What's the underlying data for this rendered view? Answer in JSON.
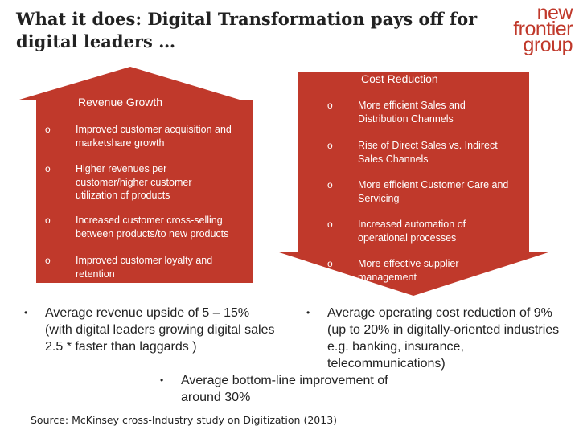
{
  "title": "What it does: Digital Transformation pays off for digital leaders …",
  "logo": {
    "line1": "new",
    "line2": "frontier",
    "line3": "group"
  },
  "colors": {
    "arrow_fill": "#c0392b",
    "logo": "#c0392b"
  },
  "revenue_panel": {
    "heading": "Revenue Growth",
    "bullet_glyph": "o",
    "items": [
      "Improved customer acquisition and marketshare growth",
      "Higher revenues per customer/higher customer utilization of products",
      "Increased customer cross-selling between products/to new products",
      "Improved customer loyalty and retention"
    ]
  },
  "cost_panel": {
    "heading": "Cost Reduction",
    "bullet_glyph": "o",
    "items": [
      "More efficient Sales and Distribution Channels",
      "Rise of Direct Sales vs. Indirect Sales Channels",
      "More efficient Customer Care and Servicing",
      "Increased automation of operational processes",
      "More effective supplier management"
    ]
  },
  "summary": {
    "bullet_glyph": "•",
    "revenue": "Average revenue upside of 5 – 15% (with digital leaders growing digital sales 2.5 * faster than laggards )",
    "cost": "Average operating cost reduction of 9% (up to 20% in digitally-oriented industries e.g. banking, insurance, telecommunications)",
    "bottom_line": "Average bottom-line improvement of around 30%"
  },
  "source": "Source: McKinsey cross-Industry study on Digitization (2013)"
}
